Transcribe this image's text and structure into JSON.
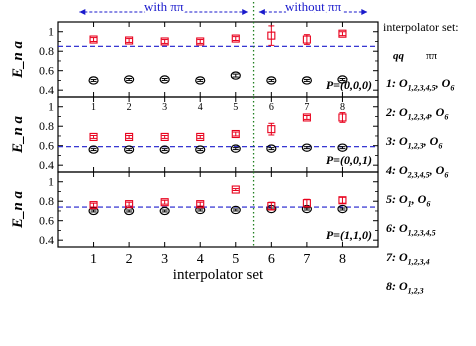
{
  "chart_data": {
    "type": "scatter",
    "xlabel": "interpolator set",
    "ylabel": "E_n a",
    "x_ticks": [
      1,
      2,
      3,
      4,
      5,
      6,
      7,
      8
    ],
    "y_ticks": [
      0.4,
      0.6,
      0.8,
      1.0
    ],
    "y_tick_labels": [
      "0.4",
      "0.6",
      "0.8",
      "1"
    ],
    "divider_x": 5.5,
    "top_annotations": {
      "left": "with ππ",
      "right": "without ππ"
    },
    "colors": {
      "n0": "#000000",
      "n1": "#e8001c",
      "threshold": "#1c1ccc",
      "annotation": "#1a1acc",
      "divider": "#208020"
    },
    "panels": [
      {
        "label": "P=(0,0,0)",
        "ylim": [
          0.33,
          1.1
        ],
        "threshold": 0.85,
        "show_number_labels": false,
        "series": [
          {
            "name": "n=0",
            "marker": "circle",
            "x": [
              1,
              2,
              3,
              4,
              5,
              6,
              7,
              8
            ],
            "y": [
              0.5,
              0.51,
              0.51,
              0.5,
              0.55,
              0.5,
              0.5,
              0.51
            ],
            "err": [
              0.01,
              0.01,
              0.01,
              0.01,
              0.015,
              0.01,
              0.01,
              0.01
            ]
          },
          {
            "name": "n=1",
            "marker": "square",
            "x": [
              1,
              2,
              3,
              4,
              5,
              6,
              7,
              8
            ],
            "y": [
              0.92,
              0.91,
              0.9,
              0.9,
              0.93,
              0.96,
              0.92,
              0.98
            ],
            "err": [
              0.02,
              0.02,
              0.02,
              0.02,
              0.02,
              0.1,
              0.05,
              0.02
            ]
          }
        ]
      },
      {
        "label": "P=(0,0,1)",
        "ylim": [
          0.33,
          1.1
        ],
        "threshold": 0.59,
        "show_number_labels": true,
        "series": [
          {
            "name": "n=0",
            "marker": "circle",
            "x": [
              1,
              2,
              3,
              4,
              5,
              6,
              7,
              8
            ],
            "y": [
              0.56,
              0.56,
              0.56,
              0.56,
              0.57,
              0.57,
              0.58,
              0.58
            ],
            "err": [
              0.01,
              0.01,
              0.01,
              0.01,
              0.01,
              0.01,
              0.01,
              0.01
            ]
          },
          {
            "name": "n=1",
            "marker": "square",
            "x": [
              1,
              2,
              3,
              4,
              5,
              6,
              7,
              8
            ],
            "y": [
              0.69,
              0.69,
              0.69,
              0.69,
              0.72,
              0.77,
              0.89,
              0.89
            ],
            "err": [
              0.015,
              0.015,
              0.015,
              0.015,
              0.02,
              0.06,
              0.02,
              0.05
            ]
          }
        ]
      },
      {
        "label": "P=(1,1,0)",
        "ylim": [
          0.33,
          1.1
        ],
        "threshold": 0.74,
        "show_number_labels": false,
        "series": [
          {
            "name": "n=0",
            "marker": "circle",
            "x": [
              1,
              2,
              3,
              4,
              5,
              6,
              7,
              8
            ],
            "y": [
              0.7,
              0.7,
              0.7,
              0.71,
              0.71,
              0.72,
              0.72,
              0.72
            ],
            "err": [
              0.01,
              0.01,
              0.01,
              0.01,
              0.01,
              0.01,
              0.01,
              0.01
            ]
          },
          {
            "name": "n=1",
            "marker": "square",
            "x": [
              1,
              2,
              3,
              4,
              5,
              6,
              7,
              8
            ],
            "y": [
              0.76,
              0.77,
              0.79,
              0.77,
              0.92,
              0.75,
              0.78,
              0.81
            ],
            "err": [
              0.02,
              0.02,
              0.02,
              0.02,
              0.01,
              0.04,
              0.04,
              0.03
            ]
          }
        ]
      }
    ]
  },
  "sidebar": {
    "title": "interpolator set:",
    "col_qq": "qq",
    "col_pipi": "ππ",
    "entries": [
      {
        "num": "1:",
        "op": "O",
        "sub": "1,2,3,4,5",
        "tail": ", O",
        "tail_sub": "6"
      },
      {
        "num": "2:",
        "op": "O",
        "sub": "1,2,3,4",
        "tail": ", O",
        "tail_sub": "6"
      },
      {
        "num": "3:",
        "op": "O",
        "sub": "1,2,3",
        "tail": ", O",
        "tail_sub": "6"
      },
      {
        "num": "4:",
        "op": "O",
        "sub": "2,3,4,5",
        "tail": ", O",
        "tail_sub": "6"
      },
      {
        "num": "5:",
        "op": "O",
        "sub": "1",
        "tail": ", O",
        "tail_sub": "6"
      },
      {
        "num": "6:",
        "op": "O",
        "sub": "1,2,3,4,5",
        "tail": "",
        "tail_sub": ""
      },
      {
        "num": "7:",
        "op": "O",
        "sub": "1,2,3,4",
        "tail": "",
        "tail_sub": ""
      },
      {
        "num": "8:",
        "op": "O",
        "sub": "1,2,3",
        "tail": "",
        "tail_sub": ""
      }
    ]
  }
}
